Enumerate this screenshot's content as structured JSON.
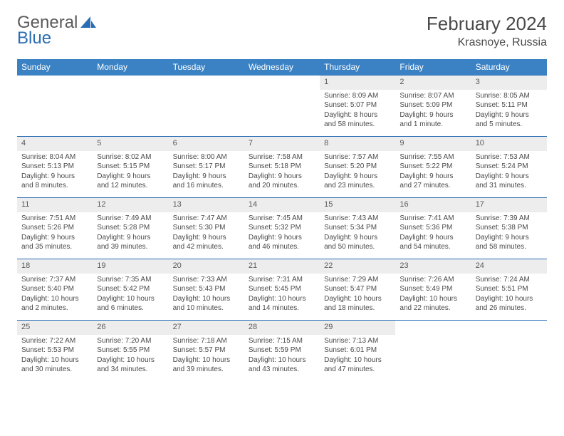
{
  "brand": {
    "word1": "General",
    "word2": "Blue",
    "icon_fill": "#2a6db5"
  },
  "title": "February 2024",
  "location": "Krasnoye, Russia",
  "header_bg": "#3b82c4",
  "header_fg": "#ffffff",
  "row_divider": "#2a6db5",
  "daynum_bg": "#ededed",
  "daynames": [
    "Sunday",
    "Monday",
    "Tuesday",
    "Wednesday",
    "Thursday",
    "Friday",
    "Saturday"
  ],
  "weeks": [
    [
      null,
      null,
      null,
      null,
      {
        "n": "1",
        "sr": "8:09 AM",
        "ss": "5:07 PM",
        "dl": "8 hours and 58 minutes."
      },
      {
        "n": "2",
        "sr": "8:07 AM",
        "ss": "5:09 PM",
        "dl": "9 hours and 1 minute."
      },
      {
        "n": "3",
        "sr": "8:05 AM",
        "ss": "5:11 PM",
        "dl": "9 hours and 5 minutes."
      }
    ],
    [
      {
        "n": "4",
        "sr": "8:04 AM",
        "ss": "5:13 PM",
        "dl": "9 hours and 8 minutes."
      },
      {
        "n": "5",
        "sr": "8:02 AM",
        "ss": "5:15 PM",
        "dl": "9 hours and 12 minutes."
      },
      {
        "n": "6",
        "sr": "8:00 AM",
        "ss": "5:17 PM",
        "dl": "9 hours and 16 minutes."
      },
      {
        "n": "7",
        "sr": "7:58 AM",
        "ss": "5:18 PM",
        "dl": "9 hours and 20 minutes."
      },
      {
        "n": "8",
        "sr": "7:57 AM",
        "ss": "5:20 PM",
        "dl": "9 hours and 23 minutes."
      },
      {
        "n": "9",
        "sr": "7:55 AM",
        "ss": "5:22 PM",
        "dl": "9 hours and 27 minutes."
      },
      {
        "n": "10",
        "sr": "7:53 AM",
        "ss": "5:24 PM",
        "dl": "9 hours and 31 minutes."
      }
    ],
    [
      {
        "n": "11",
        "sr": "7:51 AM",
        "ss": "5:26 PM",
        "dl": "9 hours and 35 minutes."
      },
      {
        "n": "12",
        "sr": "7:49 AM",
        "ss": "5:28 PM",
        "dl": "9 hours and 39 minutes."
      },
      {
        "n": "13",
        "sr": "7:47 AM",
        "ss": "5:30 PM",
        "dl": "9 hours and 42 minutes."
      },
      {
        "n": "14",
        "sr": "7:45 AM",
        "ss": "5:32 PM",
        "dl": "9 hours and 46 minutes."
      },
      {
        "n": "15",
        "sr": "7:43 AM",
        "ss": "5:34 PM",
        "dl": "9 hours and 50 minutes."
      },
      {
        "n": "16",
        "sr": "7:41 AM",
        "ss": "5:36 PM",
        "dl": "9 hours and 54 minutes."
      },
      {
        "n": "17",
        "sr": "7:39 AM",
        "ss": "5:38 PM",
        "dl": "9 hours and 58 minutes."
      }
    ],
    [
      {
        "n": "18",
        "sr": "7:37 AM",
        "ss": "5:40 PM",
        "dl": "10 hours and 2 minutes."
      },
      {
        "n": "19",
        "sr": "7:35 AM",
        "ss": "5:42 PM",
        "dl": "10 hours and 6 minutes."
      },
      {
        "n": "20",
        "sr": "7:33 AM",
        "ss": "5:43 PM",
        "dl": "10 hours and 10 minutes."
      },
      {
        "n": "21",
        "sr": "7:31 AM",
        "ss": "5:45 PM",
        "dl": "10 hours and 14 minutes."
      },
      {
        "n": "22",
        "sr": "7:29 AM",
        "ss": "5:47 PM",
        "dl": "10 hours and 18 minutes."
      },
      {
        "n": "23",
        "sr": "7:26 AM",
        "ss": "5:49 PM",
        "dl": "10 hours and 22 minutes."
      },
      {
        "n": "24",
        "sr": "7:24 AM",
        "ss": "5:51 PM",
        "dl": "10 hours and 26 minutes."
      }
    ],
    [
      {
        "n": "25",
        "sr": "7:22 AM",
        "ss": "5:53 PM",
        "dl": "10 hours and 30 minutes."
      },
      {
        "n": "26",
        "sr": "7:20 AM",
        "ss": "5:55 PM",
        "dl": "10 hours and 34 minutes."
      },
      {
        "n": "27",
        "sr": "7:18 AM",
        "ss": "5:57 PM",
        "dl": "10 hours and 39 minutes."
      },
      {
        "n": "28",
        "sr": "7:15 AM",
        "ss": "5:59 PM",
        "dl": "10 hours and 43 minutes."
      },
      {
        "n": "29",
        "sr": "7:13 AM",
        "ss": "6:01 PM",
        "dl": "10 hours and 47 minutes."
      },
      null,
      null
    ]
  ],
  "labels": {
    "sunrise": "Sunrise: ",
    "sunset": "Sunset: ",
    "daylight": "Daylight: "
  }
}
